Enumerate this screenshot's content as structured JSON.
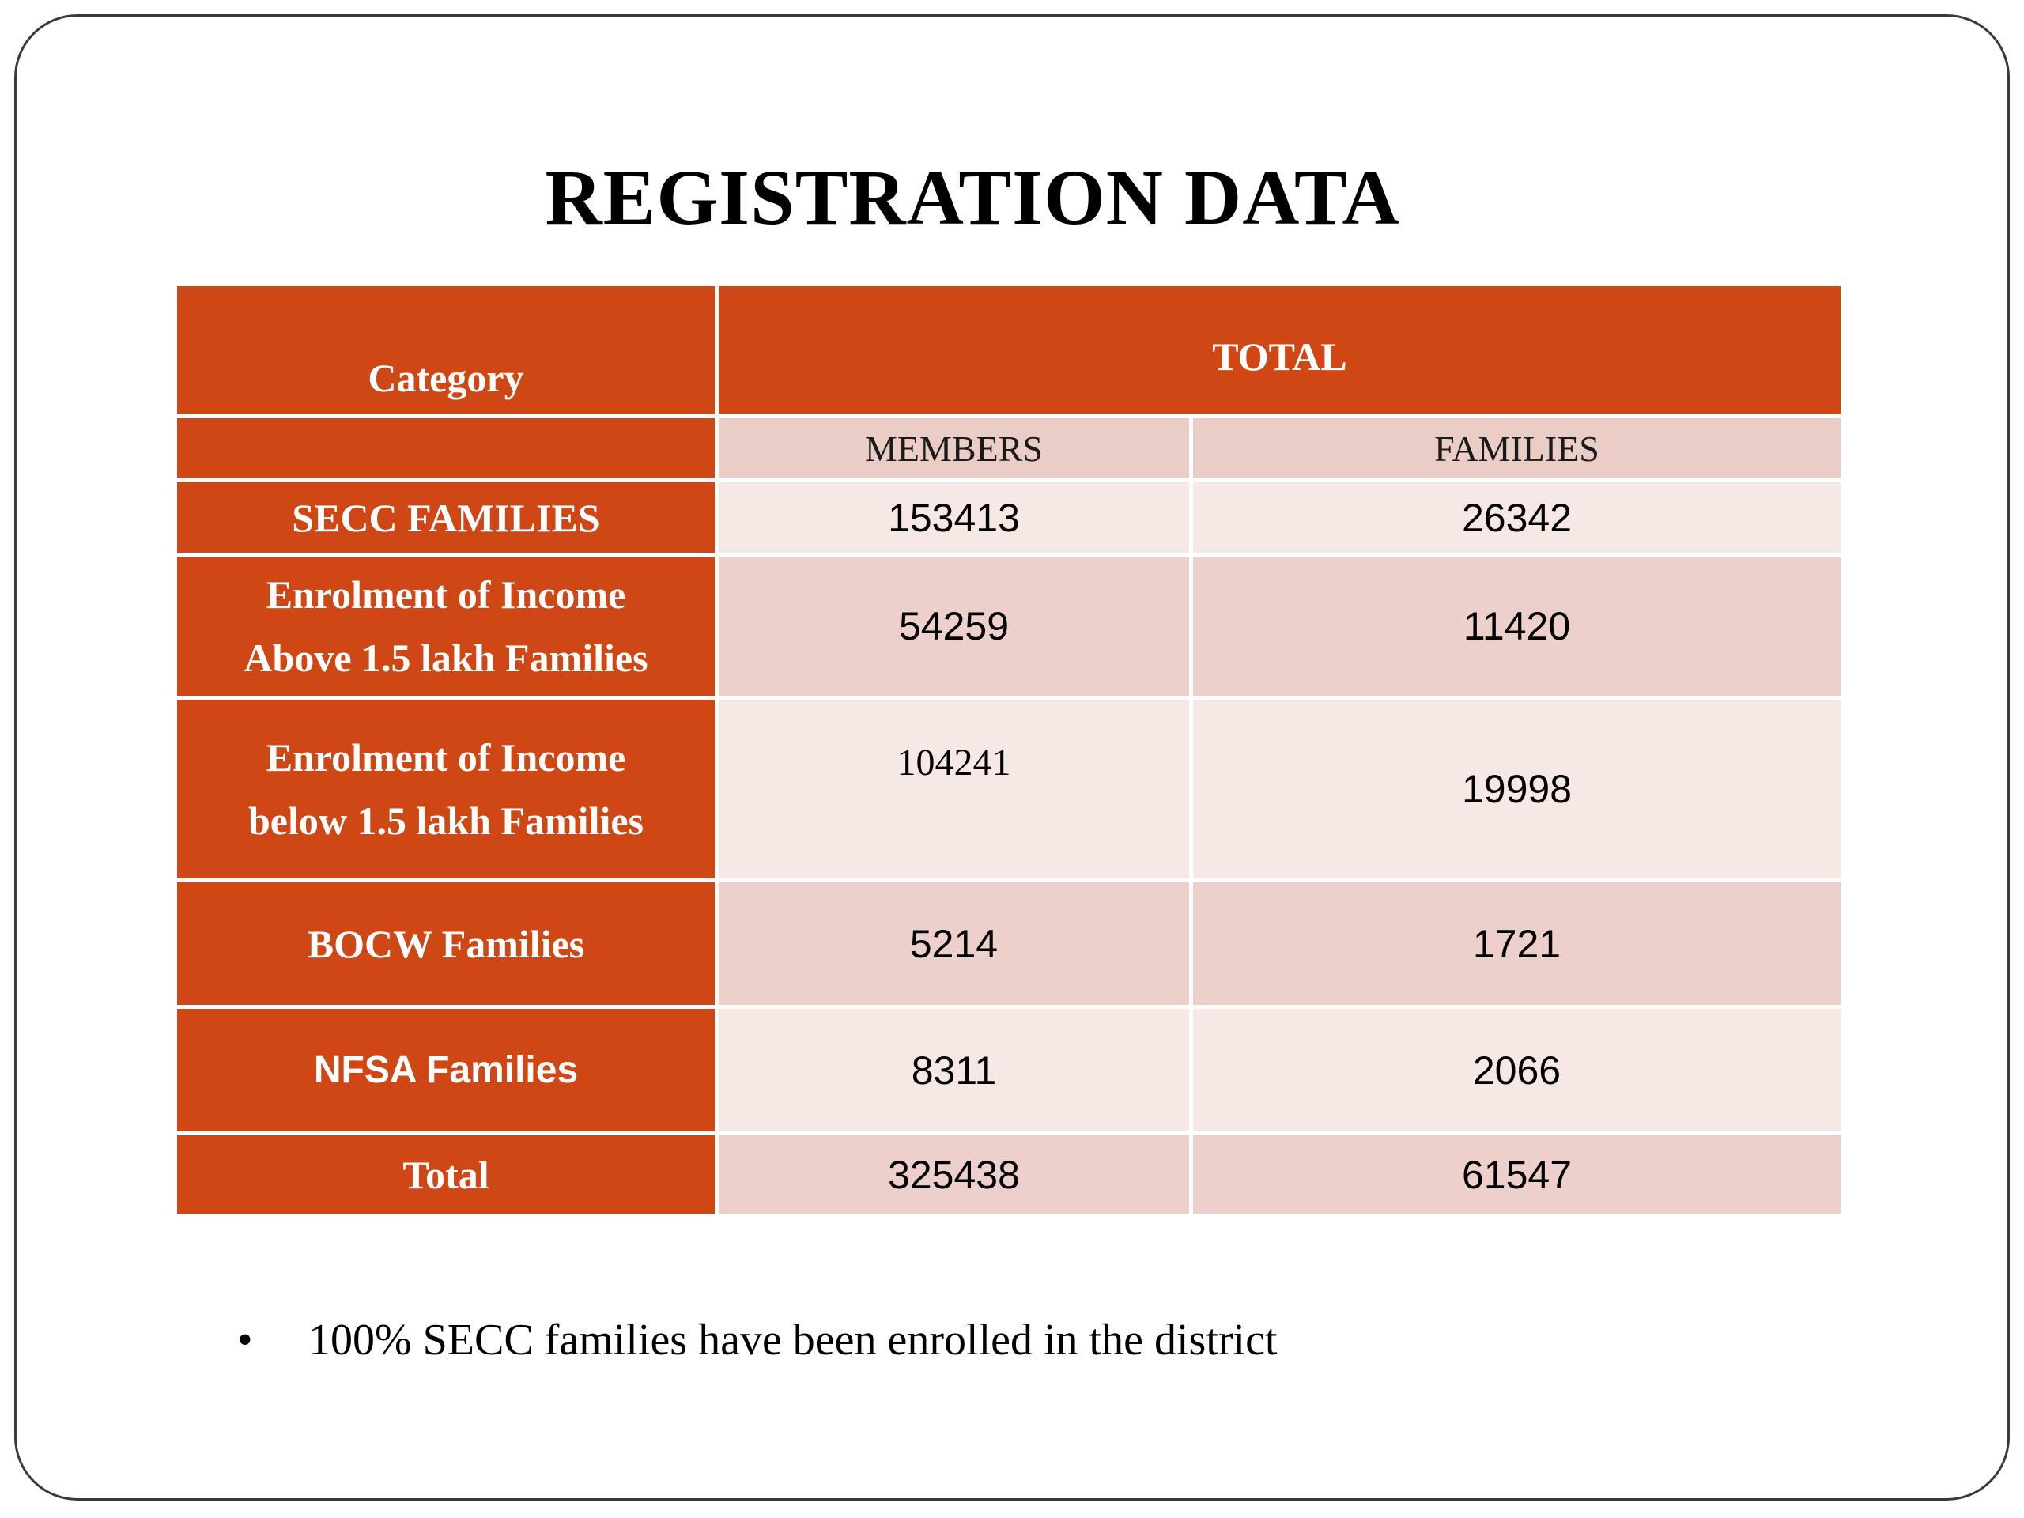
{
  "slide": {
    "title": "REGISTRATION DATA",
    "bullet": {
      "symbol": "•",
      "text": "100% SECC families have been enrolled in the district"
    }
  },
  "table": {
    "header": {
      "category": "Category",
      "total": "TOTAL",
      "members": "MEMBERS",
      "families": "FAMILIES"
    },
    "rows": [
      {
        "category": "SECC FAMILIES",
        "members": "153413",
        "families": "26342"
      },
      {
        "category_line1": "Enrolment of Income",
        "category_line2": "Above 1.5 lakh Families",
        "members": "54259",
        "families": "11420"
      },
      {
        "category_line1": "Enrolment of Income",
        "category_line2": "below 1.5 lakh Families",
        "members": "104241",
        "families": "19998"
      },
      {
        "category": "BOCW Families",
        "members": "5214",
        "families": "1721"
      },
      {
        "category": "NFSA Families",
        "members": "8311",
        "families": "2066"
      },
      {
        "category": "Total",
        "members": "325438",
        "families": "61547"
      }
    ]
  },
  "colors": {
    "header_orange": "#d04716",
    "row_light": "#f6e8e5",
    "row_dark": "#edd0cc",
    "slide_border": "#3a3a3a"
  }
}
